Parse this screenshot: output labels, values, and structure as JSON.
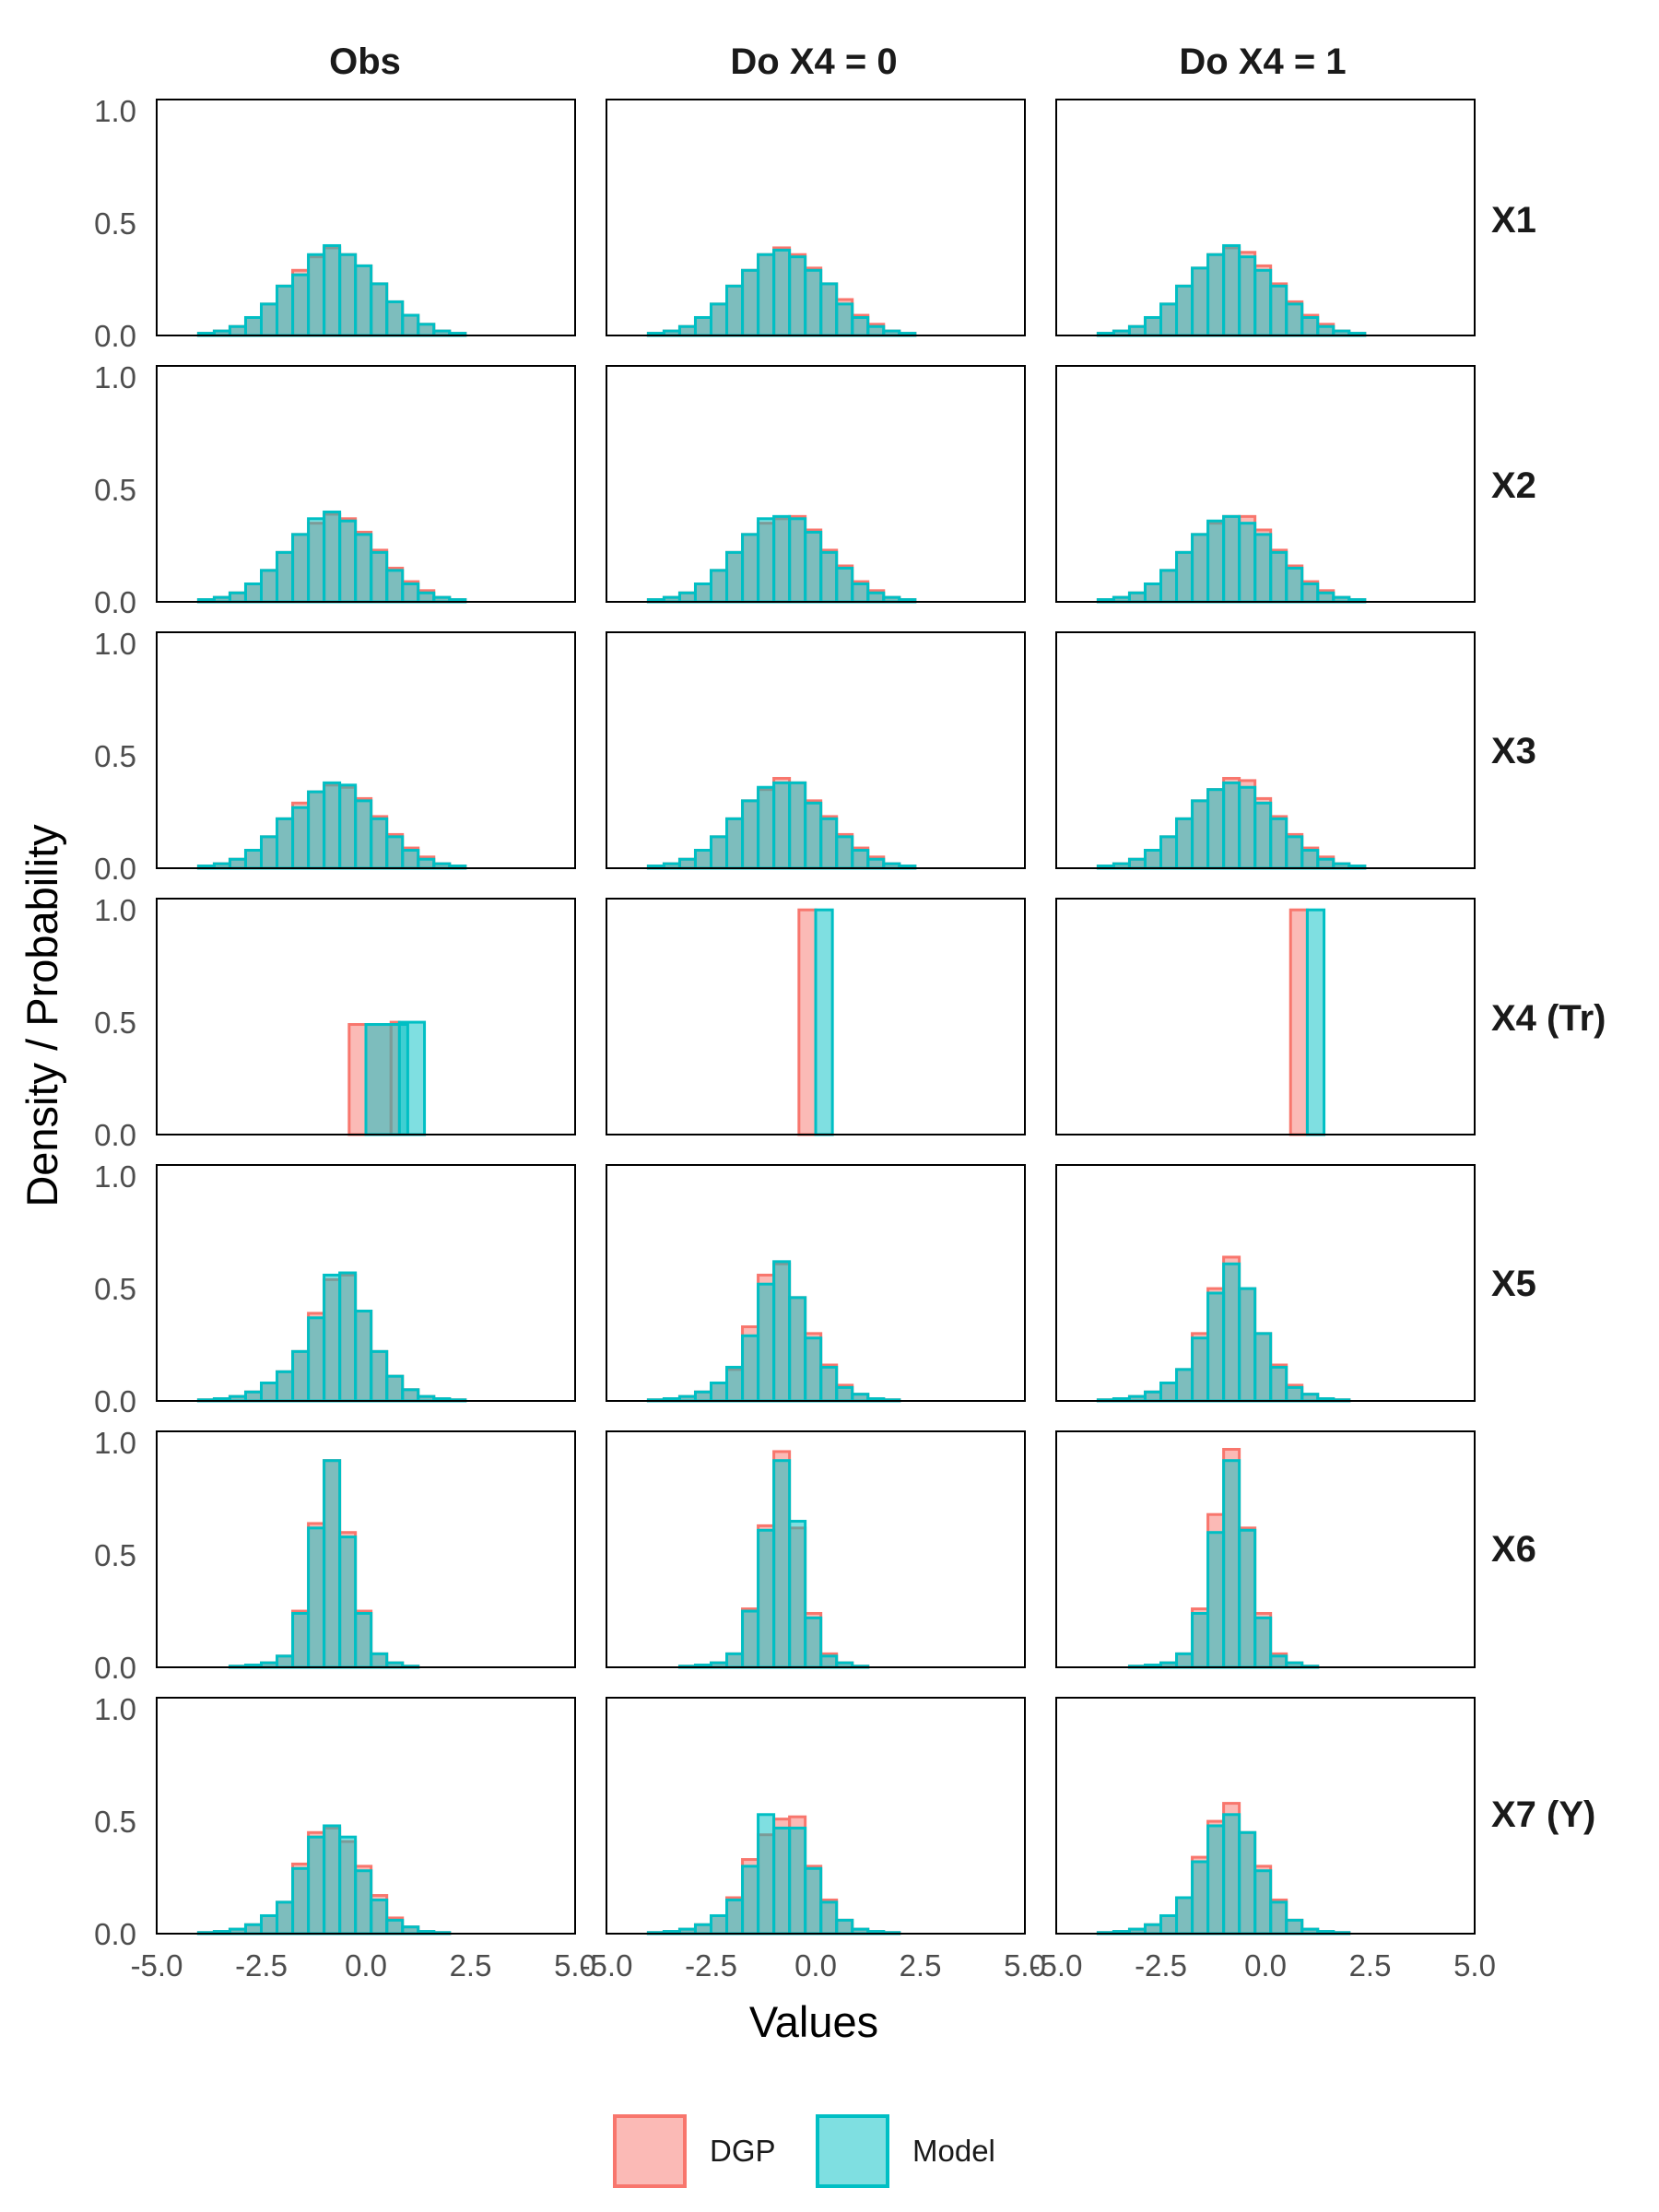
{
  "chart_data": {
    "type": "bar",
    "subtype": "faceted histogram (density), overlaid",
    "columns": [
      "Obs",
      "Do X4 = 0",
      "Do X4 = 1"
    ],
    "rows": [
      "X1",
      "X2",
      "X3",
      "X4 (Tr)",
      "X5",
      "X6",
      "X7 (Y)"
    ],
    "xlabel": "Values",
    "ylabel": "Density / Probability",
    "xlim": [
      -5,
      5
    ],
    "ylim": [
      0,
      1.05
    ],
    "x_ticks": [
      -5,
      -2.5,
      0,
      2.5,
      5
    ],
    "x_tick_labels": [
      "-5.0",
      "-2.5",
      "0.0",
      "2.5",
      "5.0"
    ],
    "y_ticks": [
      0,
      0.5,
      1
    ],
    "y_tick_labels": [
      "0.0",
      "0.5",
      "1.0"
    ],
    "grid": false,
    "legend_position": "bottom",
    "series": [
      {
        "name": "DGP",
        "fill": "#f8766d",
        "fill_opacity": 0.5,
        "stroke": "#f8766d"
      },
      {
        "name": "Model",
        "fill": "#00bfc4",
        "fill_opacity": 0.5,
        "stroke": "#00bfc4"
      }
    ],
    "continuous_bins": {
      "start": -4.0,
      "width": 0.375
    },
    "panels": [
      {
        "row": "X1",
        "column": "Obs",
        "DGP": [
          0.01,
          0.02,
          0.04,
          0.08,
          0.14,
          0.22,
          0.29,
          0.35,
          0.39,
          0.36,
          0.31,
          0.23,
          0.15,
          0.09,
          0.05,
          0.02,
          0.01
        ],
        "Model": [
          0.01,
          0.02,
          0.04,
          0.08,
          0.14,
          0.22,
          0.27,
          0.36,
          0.4,
          0.36,
          0.31,
          0.23,
          0.15,
          0.09,
          0.05,
          0.02,
          0.01
        ]
      },
      {
        "row": "X1",
        "column": "Do X4 = 0",
        "DGP": [
          0.01,
          0.02,
          0.04,
          0.08,
          0.14,
          0.22,
          0.29,
          0.36,
          0.39,
          0.36,
          0.3,
          0.23,
          0.16,
          0.09,
          0.05,
          0.02,
          0.01
        ],
        "Model": [
          0.01,
          0.02,
          0.04,
          0.08,
          0.14,
          0.22,
          0.29,
          0.36,
          0.38,
          0.35,
          0.29,
          0.23,
          0.14,
          0.08,
          0.04,
          0.02,
          0.01
        ]
      },
      {
        "row": "X1",
        "column": "Do X4 = 1",
        "DGP": [
          0.01,
          0.02,
          0.04,
          0.08,
          0.14,
          0.22,
          0.3,
          0.36,
          0.39,
          0.37,
          0.31,
          0.23,
          0.15,
          0.09,
          0.05,
          0.02,
          0.01
        ],
        "Model": [
          0.01,
          0.02,
          0.04,
          0.08,
          0.14,
          0.22,
          0.3,
          0.36,
          0.4,
          0.35,
          0.29,
          0.22,
          0.14,
          0.08,
          0.04,
          0.02,
          0.01
        ]
      },
      {
        "row": "X2",
        "column": "Obs",
        "DGP": [
          0.01,
          0.02,
          0.04,
          0.08,
          0.14,
          0.22,
          0.3,
          0.35,
          0.39,
          0.37,
          0.31,
          0.23,
          0.15,
          0.09,
          0.05,
          0.02,
          0.01
        ],
        "Model": [
          0.01,
          0.02,
          0.04,
          0.08,
          0.14,
          0.22,
          0.3,
          0.37,
          0.4,
          0.36,
          0.3,
          0.22,
          0.14,
          0.08,
          0.04,
          0.02,
          0.01
        ]
      },
      {
        "row": "X2",
        "column": "Do X4 = 0",
        "DGP": [
          0.01,
          0.02,
          0.04,
          0.08,
          0.14,
          0.22,
          0.3,
          0.35,
          0.37,
          0.38,
          0.32,
          0.23,
          0.16,
          0.09,
          0.05,
          0.02,
          0.01
        ],
        "Model": [
          0.01,
          0.02,
          0.04,
          0.08,
          0.14,
          0.22,
          0.3,
          0.37,
          0.38,
          0.37,
          0.31,
          0.22,
          0.15,
          0.08,
          0.04,
          0.02,
          0.01
        ]
      },
      {
        "row": "X2",
        "column": "Do X4 = 1",
        "DGP": [
          0.01,
          0.02,
          0.04,
          0.08,
          0.14,
          0.22,
          0.3,
          0.35,
          0.38,
          0.38,
          0.32,
          0.23,
          0.16,
          0.09,
          0.05,
          0.02,
          0.01
        ],
        "Model": [
          0.01,
          0.02,
          0.04,
          0.08,
          0.14,
          0.22,
          0.3,
          0.36,
          0.38,
          0.35,
          0.3,
          0.22,
          0.15,
          0.08,
          0.04,
          0.02,
          0.01
        ]
      },
      {
        "row": "X3",
        "column": "Obs",
        "DGP": [
          0.01,
          0.02,
          0.04,
          0.08,
          0.14,
          0.22,
          0.29,
          0.34,
          0.37,
          0.36,
          0.31,
          0.23,
          0.15,
          0.09,
          0.05,
          0.02,
          0.01
        ],
        "Model": [
          0.01,
          0.02,
          0.04,
          0.08,
          0.14,
          0.22,
          0.27,
          0.34,
          0.38,
          0.37,
          0.3,
          0.22,
          0.14,
          0.08,
          0.04,
          0.02,
          0.01
        ]
      },
      {
        "row": "X3",
        "column": "Do X4 = 0",
        "DGP": [
          0.01,
          0.02,
          0.04,
          0.08,
          0.14,
          0.22,
          0.3,
          0.35,
          0.4,
          0.38,
          0.3,
          0.23,
          0.15,
          0.09,
          0.05,
          0.02,
          0.01
        ],
        "Model": [
          0.01,
          0.02,
          0.04,
          0.08,
          0.14,
          0.22,
          0.3,
          0.36,
          0.38,
          0.38,
          0.29,
          0.22,
          0.14,
          0.08,
          0.04,
          0.02,
          0.01
        ]
      },
      {
        "row": "X3",
        "column": "Do X4 = 1",
        "DGP": [
          0.01,
          0.02,
          0.04,
          0.08,
          0.14,
          0.22,
          0.3,
          0.35,
          0.4,
          0.39,
          0.31,
          0.23,
          0.15,
          0.09,
          0.05,
          0.02,
          0.01
        ],
        "Model": [
          0.01,
          0.02,
          0.04,
          0.08,
          0.14,
          0.22,
          0.3,
          0.35,
          0.38,
          0.36,
          0.29,
          0.22,
          0.14,
          0.08,
          0.04,
          0.02,
          0.01
        ]
      },
      {
        "row": "X4 (Tr)",
        "column": "Obs",
        "DGP_bars": [
          {
            "x0": -0.4,
            "x1": 0.6,
            "y": 0.49
          }
        ],
        "Model_bars": [
          {
            "x0": 0.0,
            "x1": 1.0,
            "y": 0.49
          }
        ],
        "DGP_extra": [
          {
            "x0": 0.6,
            "x1": 0.8,
            "y": 0.5
          }
        ],
        "Model_extra": [
          {
            "x0": 0.8,
            "x1": 1.4,
            "y": 0.5
          }
        ]
      },
      {
        "row": "X4 (Tr)",
        "column": "Do X4 = 0",
        "DGP_bars": [
          {
            "x0": -0.4,
            "x1": 0.0,
            "y": 1.0
          }
        ],
        "Model_bars": [
          {
            "x0": 0.0,
            "x1": 0.4,
            "y": 1.0
          }
        ]
      },
      {
        "row": "X4 (Tr)",
        "column": "Do X4 = 1",
        "DGP_bars": [
          {
            "x0": 0.6,
            "x1": 1.0,
            "y": 1.0
          }
        ],
        "Model_bars": [
          {
            "x0": 1.0,
            "x1": 1.4,
            "y": 1.0
          }
        ]
      },
      {
        "row": "X5",
        "column": "Obs",
        "DGP": [
          0.005,
          0.01,
          0.02,
          0.04,
          0.08,
          0.13,
          0.22,
          0.39,
          0.54,
          0.56,
          0.4,
          0.22,
          0.11,
          0.05,
          0.02,
          0.01,
          0.005
        ],
        "Model": [
          0.005,
          0.01,
          0.02,
          0.04,
          0.08,
          0.13,
          0.22,
          0.37,
          0.56,
          0.57,
          0.4,
          0.22,
          0.11,
          0.05,
          0.02,
          0.01,
          0.005
        ]
      },
      {
        "row": "X5",
        "column": "Do X4 = 0",
        "DGP": [
          0.005,
          0.01,
          0.02,
          0.04,
          0.08,
          0.14,
          0.33,
          0.56,
          0.61,
          0.46,
          0.3,
          0.16,
          0.07,
          0.03,
          0.01,
          0.005,
          0.0
        ],
        "Model": [
          0.005,
          0.01,
          0.02,
          0.04,
          0.08,
          0.15,
          0.29,
          0.52,
          0.62,
          0.46,
          0.28,
          0.15,
          0.06,
          0.03,
          0.01,
          0.005,
          0.0
        ]
      },
      {
        "row": "X5",
        "column": "Do X4 = 1",
        "DGP": [
          0.005,
          0.01,
          0.02,
          0.04,
          0.08,
          0.14,
          0.3,
          0.5,
          0.64,
          0.5,
          0.3,
          0.16,
          0.07,
          0.03,
          0.01,
          0.005,
          0.0
        ],
        "Model": [
          0.005,
          0.01,
          0.02,
          0.04,
          0.08,
          0.14,
          0.28,
          0.48,
          0.61,
          0.5,
          0.3,
          0.15,
          0.06,
          0.03,
          0.01,
          0.005,
          0.0
        ]
      },
      {
        "row": "X6",
        "column": "Obs",
        "DGP": [
          0.0,
          0.0,
          0.005,
          0.01,
          0.02,
          0.05,
          0.25,
          0.64,
          0.92,
          0.6,
          0.25,
          0.06,
          0.02,
          0.005,
          0.0,
          0.0,
          0.0
        ],
        "Model": [
          0.0,
          0.0,
          0.005,
          0.01,
          0.02,
          0.05,
          0.24,
          0.62,
          0.92,
          0.58,
          0.24,
          0.06,
          0.02,
          0.005,
          0.0,
          0.0,
          0.0
        ]
      },
      {
        "row": "X6",
        "column": "Do X4 = 0",
        "DGP": [
          0.0,
          0.0,
          0.005,
          0.01,
          0.02,
          0.06,
          0.26,
          0.63,
          0.96,
          0.62,
          0.24,
          0.06,
          0.02,
          0.005,
          0.0,
          0.0,
          0.0
        ],
        "Model": [
          0.0,
          0.0,
          0.005,
          0.01,
          0.02,
          0.06,
          0.25,
          0.61,
          0.92,
          0.65,
          0.22,
          0.05,
          0.02,
          0.005,
          0.0,
          0.0,
          0.0
        ]
      },
      {
        "row": "X6",
        "column": "Do X4 = 1",
        "DGP": [
          0.0,
          0.0,
          0.005,
          0.01,
          0.02,
          0.06,
          0.26,
          0.68,
          0.97,
          0.62,
          0.24,
          0.06,
          0.02,
          0.005,
          0.0,
          0.0,
          0.0
        ],
        "Model": [
          0.0,
          0.0,
          0.005,
          0.01,
          0.02,
          0.06,
          0.24,
          0.6,
          0.92,
          0.61,
          0.22,
          0.05,
          0.02,
          0.005,
          0.0,
          0.0,
          0.0
        ]
      },
      {
        "row": "X7 (Y)",
        "column": "Obs",
        "DGP": [
          0.005,
          0.01,
          0.02,
          0.04,
          0.08,
          0.14,
          0.31,
          0.45,
          0.47,
          0.41,
          0.3,
          0.17,
          0.07,
          0.03,
          0.01,
          0.005,
          0.0
        ],
        "Model": [
          0.005,
          0.01,
          0.02,
          0.04,
          0.08,
          0.14,
          0.29,
          0.43,
          0.48,
          0.43,
          0.28,
          0.15,
          0.06,
          0.03,
          0.01,
          0.005,
          0.0
        ]
      },
      {
        "row": "X7 (Y)",
        "column": "Do X4 = 0",
        "DGP": [
          0.005,
          0.01,
          0.02,
          0.04,
          0.08,
          0.16,
          0.33,
          0.44,
          0.51,
          0.52,
          0.3,
          0.15,
          0.06,
          0.02,
          0.01,
          0.005,
          0.0
        ],
        "Model": [
          0.005,
          0.01,
          0.02,
          0.04,
          0.08,
          0.15,
          0.3,
          0.53,
          0.47,
          0.47,
          0.29,
          0.14,
          0.06,
          0.02,
          0.01,
          0.005,
          0.0
        ]
      },
      {
        "row": "X7 (Y)",
        "column": "Do X4 = 1",
        "DGP": [
          0.005,
          0.01,
          0.02,
          0.04,
          0.08,
          0.16,
          0.34,
          0.5,
          0.58,
          0.45,
          0.3,
          0.15,
          0.06,
          0.02,
          0.01,
          0.005,
          0.0
        ],
        "Model": [
          0.005,
          0.01,
          0.02,
          0.04,
          0.08,
          0.16,
          0.32,
          0.48,
          0.53,
          0.45,
          0.28,
          0.14,
          0.06,
          0.02,
          0.01,
          0.005,
          0.0
        ]
      }
    ]
  }
}
